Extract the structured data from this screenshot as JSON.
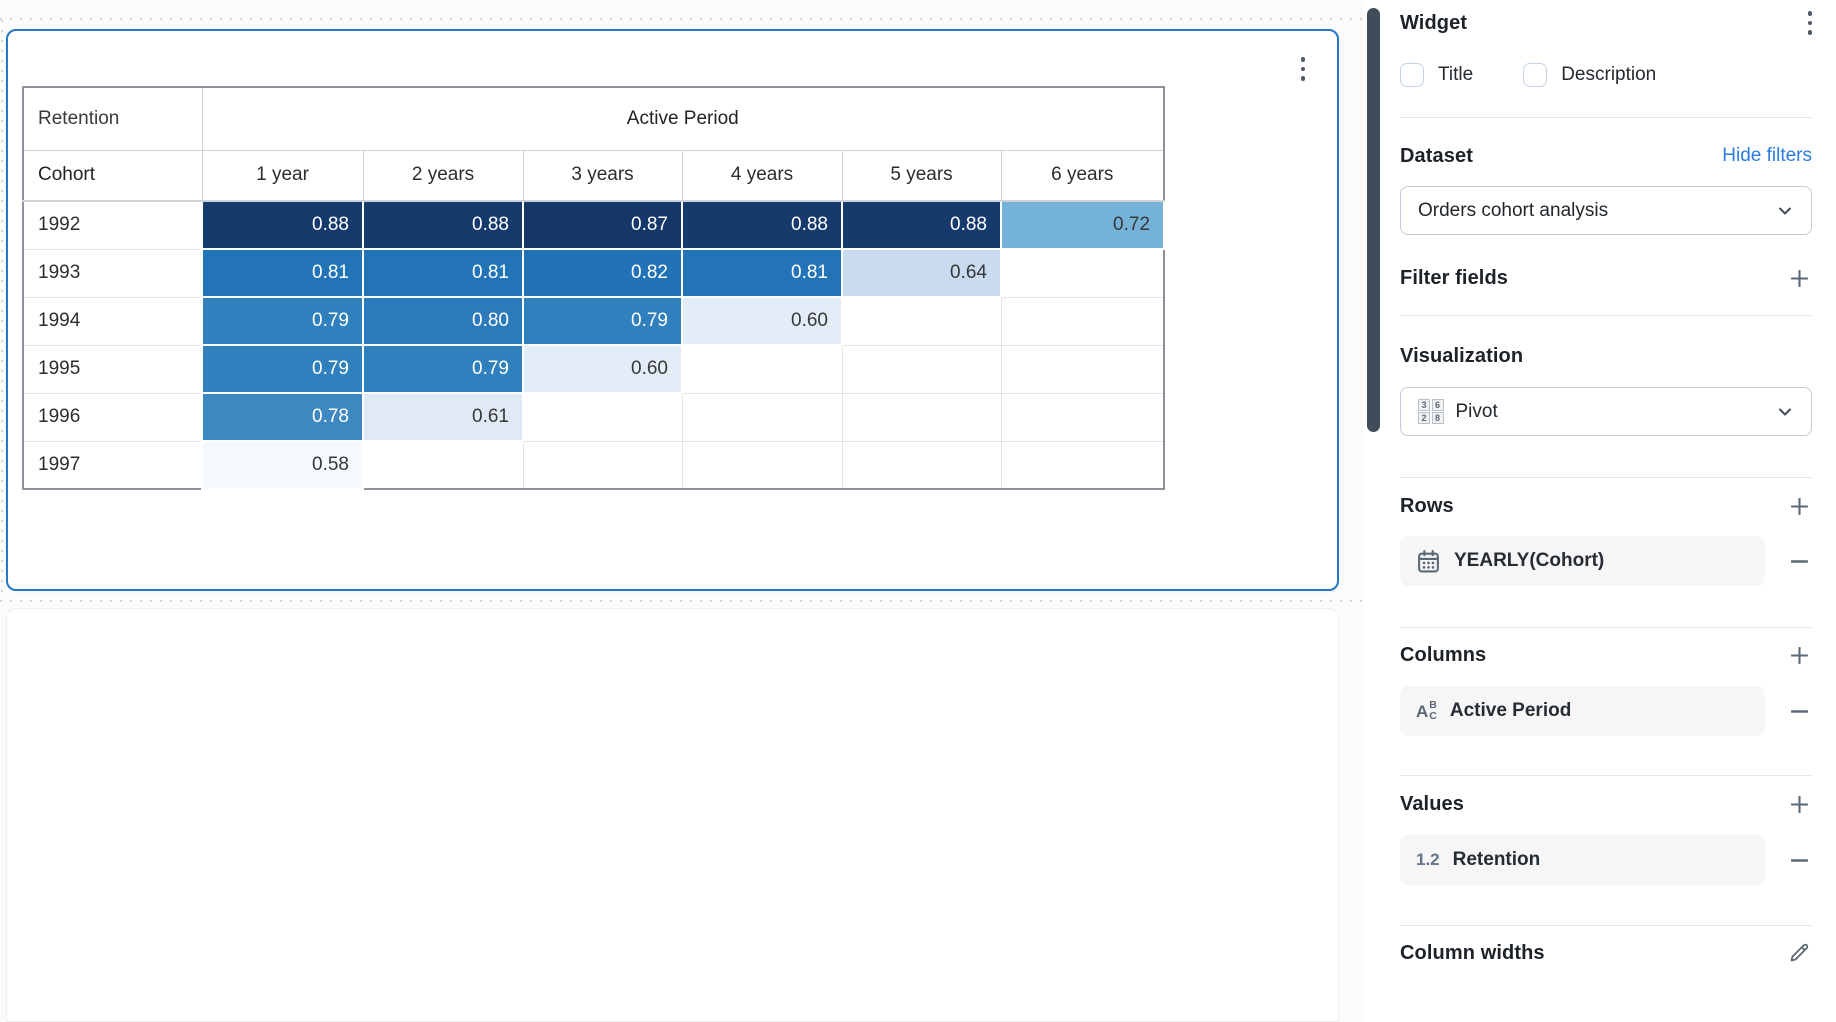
{
  "pivot": {
    "measure_label": "Retention",
    "column_group_label": "Active Period",
    "row_dim_label": "Cohort",
    "col_headers": [
      "1 year",
      "2 years",
      "3 years",
      "4 years",
      "5 years",
      "6 years"
    ],
    "rows": [
      {
        "label": "1992",
        "cells": [
          {
            "v": "0.88",
            "bg": "#173a6c",
            "fg": "#ffffff"
          },
          {
            "v": "0.88",
            "bg": "#173a6c",
            "fg": "#ffffff"
          },
          {
            "v": "0.87",
            "bg": "#143668",
            "fg": "#ffffff"
          },
          {
            "v": "0.88",
            "bg": "#173a6c",
            "fg": "#ffffff"
          },
          {
            "v": "0.88",
            "bg": "#173a6c",
            "fg": "#ffffff"
          },
          {
            "v": "0.72",
            "bg": "#74b2d8",
            "fg": "#373737"
          }
        ]
      },
      {
        "label": "1993",
        "cells": [
          {
            "v": "0.81",
            "bg": "#2274b7",
            "fg": "#ffffff"
          },
          {
            "v": "0.81",
            "bg": "#2274b7",
            "fg": "#ffffff"
          },
          {
            "v": "0.82",
            "bg": "#2173b5",
            "fg": "#ffffff"
          },
          {
            "v": "0.81",
            "bg": "#2274b7",
            "fg": "#ffffff"
          },
          {
            "v": "0.64",
            "bg": "#c9dcef",
            "fg": "#373737"
          },
          null
        ]
      },
      {
        "label": "1994",
        "cells": [
          {
            "v": "0.79",
            "bg": "#2f80bd",
            "fg": "#ffffff"
          },
          {
            "v": "0.80",
            "bg": "#2b7abb",
            "fg": "#ffffff"
          },
          {
            "v": "0.79",
            "bg": "#2f80bd",
            "fg": "#ffffff"
          },
          {
            "v": "0.60",
            "bg": "#e3edf8",
            "fg": "#373737"
          },
          null,
          null
        ]
      },
      {
        "label": "1995",
        "cells": [
          {
            "v": "0.79",
            "bg": "#2f80bd",
            "fg": "#ffffff"
          },
          {
            "v": "0.79",
            "bg": "#2f80bd",
            "fg": "#ffffff"
          },
          {
            "v": "0.60",
            "bg": "#e3edf8",
            "fg": "#373737"
          },
          null,
          null,
          null
        ]
      },
      {
        "label": "1996",
        "cells": [
          {
            "v": "0.78",
            "bg": "#3d88c1",
            "fg": "#ffffff"
          },
          {
            "v": "0.61",
            "bg": "#dfeaf6",
            "fg": "#373737"
          },
          null,
          null,
          null,
          null
        ]
      },
      {
        "label": "1997",
        "cells": [
          {
            "v": "0.58",
            "bg": "#f4f9fd",
            "fg": "#373737"
          },
          null,
          null,
          null,
          null,
          null
        ]
      }
    ]
  },
  "sidebar": {
    "title": "Widget",
    "checkboxes": {
      "title_label": "Title",
      "description_label": "Description"
    },
    "dataset": {
      "heading": "Dataset",
      "link": "Hide filters",
      "selected": "Orders cohort analysis"
    },
    "filter_fields": {
      "heading": "Filter fields"
    },
    "visualization": {
      "heading": "Visualization",
      "selected": "Pivot",
      "icon_numbers": [
        "3",
        "6",
        "2",
        "8"
      ]
    },
    "rows_section": {
      "heading": "Rows",
      "item": "YEARLY(Cohort)"
    },
    "columns_section": {
      "heading": "Columns",
      "item": "Active Period",
      "icon_letters": {
        "a": "A",
        "b": "B",
        "c": "C"
      }
    },
    "values_section": {
      "heading": "Values",
      "item": "Retention",
      "icon_text": "1.2"
    },
    "column_widths": {
      "heading": "Column widths"
    }
  },
  "colors": {
    "widget_selection_border": "#2778c6",
    "link_blue": "#2b7ce0",
    "scrollbar_thumb": "#3f4d5b",
    "icon_slate": "#5a6878",
    "heatmap_dark": "#173a6c",
    "heatmap_light": "#f4f9fd"
  }
}
